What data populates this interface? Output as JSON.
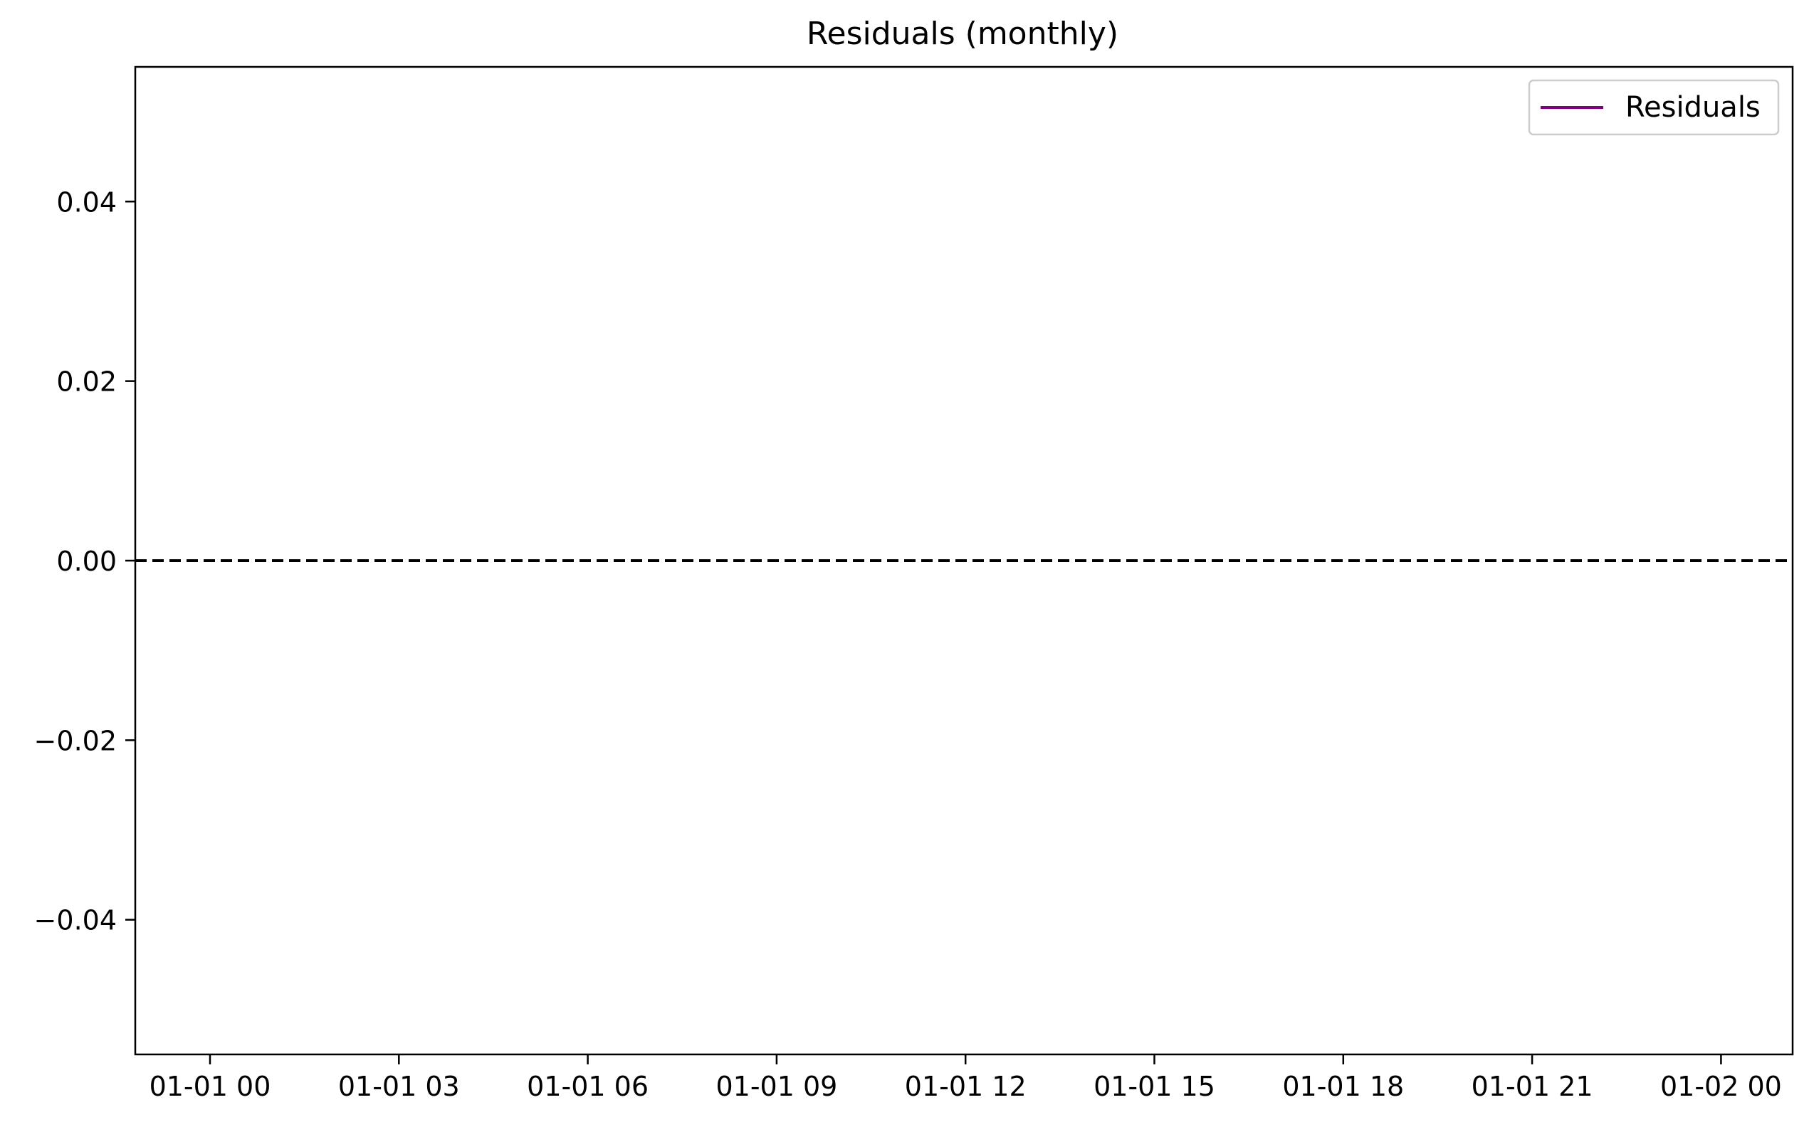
{
  "chart_data": {
    "type": "line",
    "title": "Residuals (monthly)",
    "xlabel": "",
    "ylabel": "",
    "x_ticks": [
      "01-01 00",
      "01-01 03",
      "01-01 06",
      "01-01 09",
      "01-01 12",
      "01-01 15",
      "01-01 18",
      "01-01 21",
      "01-02 00"
    ],
    "y_ticks": [
      0.04,
      0.02,
      0.0,
      -0.02,
      -0.04
    ],
    "y_tick_labels": [
      "0.04",
      "0.02",
      "0.00",
      "−0.02",
      "−0.04"
    ],
    "ylim": [
      -0.055,
      0.055
    ],
    "series": [
      {
        "name": "Residuals",
        "color": "#800080",
        "x": [],
        "y": []
      }
    ],
    "reference_line": {
      "y": 0,
      "style": "dashed",
      "color": "#000000"
    },
    "legend": {
      "placement": "top-right"
    },
    "grid": false
  }
}
